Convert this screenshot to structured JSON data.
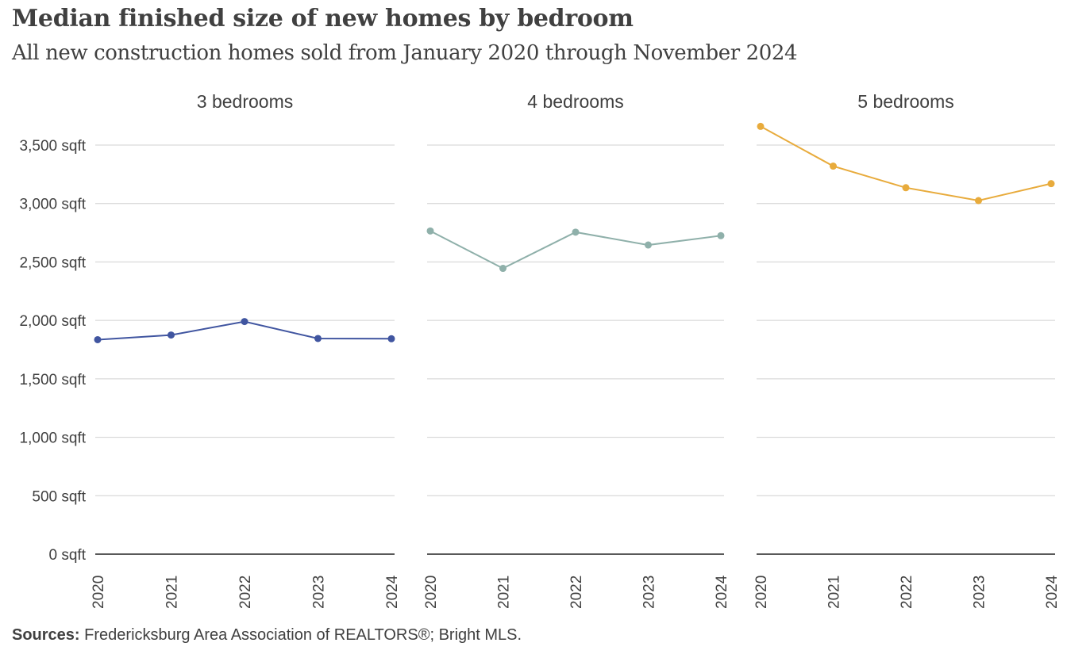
{
  "header": {
    "title": "Median finished size of new homes by bedroom",
    "subtitle": "All new construction homes sold from January 2020 through November 2024"
  },
  "footer": {
    "sources_label": "Sources:",
    "sources_text": "Fredericksburg  Area Association of REALTORS®;  Bright MLS."
  },
  "chart_data": {
    "type": "line",
    "layout": "small-multiples",
    "y_ticks": [
      0,
      500,
      1000,
      1500,
      2000,
      2500,
      3000,
      3500
    ],
    "y_tick_labels": [
      "0 sqft",
      "500 sqft",
      "1,000 sqft",
      "1,500 sqft",
      "2,000 sqft",
      "2,500 sqft",
      "3,000 sqft",
      "3,500 sqft"
    ],
    "ylim": [
      0,
      3700
    ],
    "ylabel": "",
    "xlabel": "",
    "grid": true,
    "categories": [
      "2020",
      "2021",
      "2022",
      "2023",
      "2024"
    ],
    "panels": [
      {
        "title": "3 bedrooms",
        "color": "#4055a0",
        "values": [
          1835,
          1875,
          1990,
          1845,
          1843
        ]
      },
      {
        "title": "4 bedrooms",
        "color": "#8fb0aa",
        "values": [
          2765,
          2445,
          2755,
          2645,
          2725
        ]
      },
      {
        "title": "5 bedrooms",
        "color": "#e8ab3c",
        "values": [
          3660,
          3320,
          3135,
          3025,
          3170
        ]
      }
    ]
  }
}
